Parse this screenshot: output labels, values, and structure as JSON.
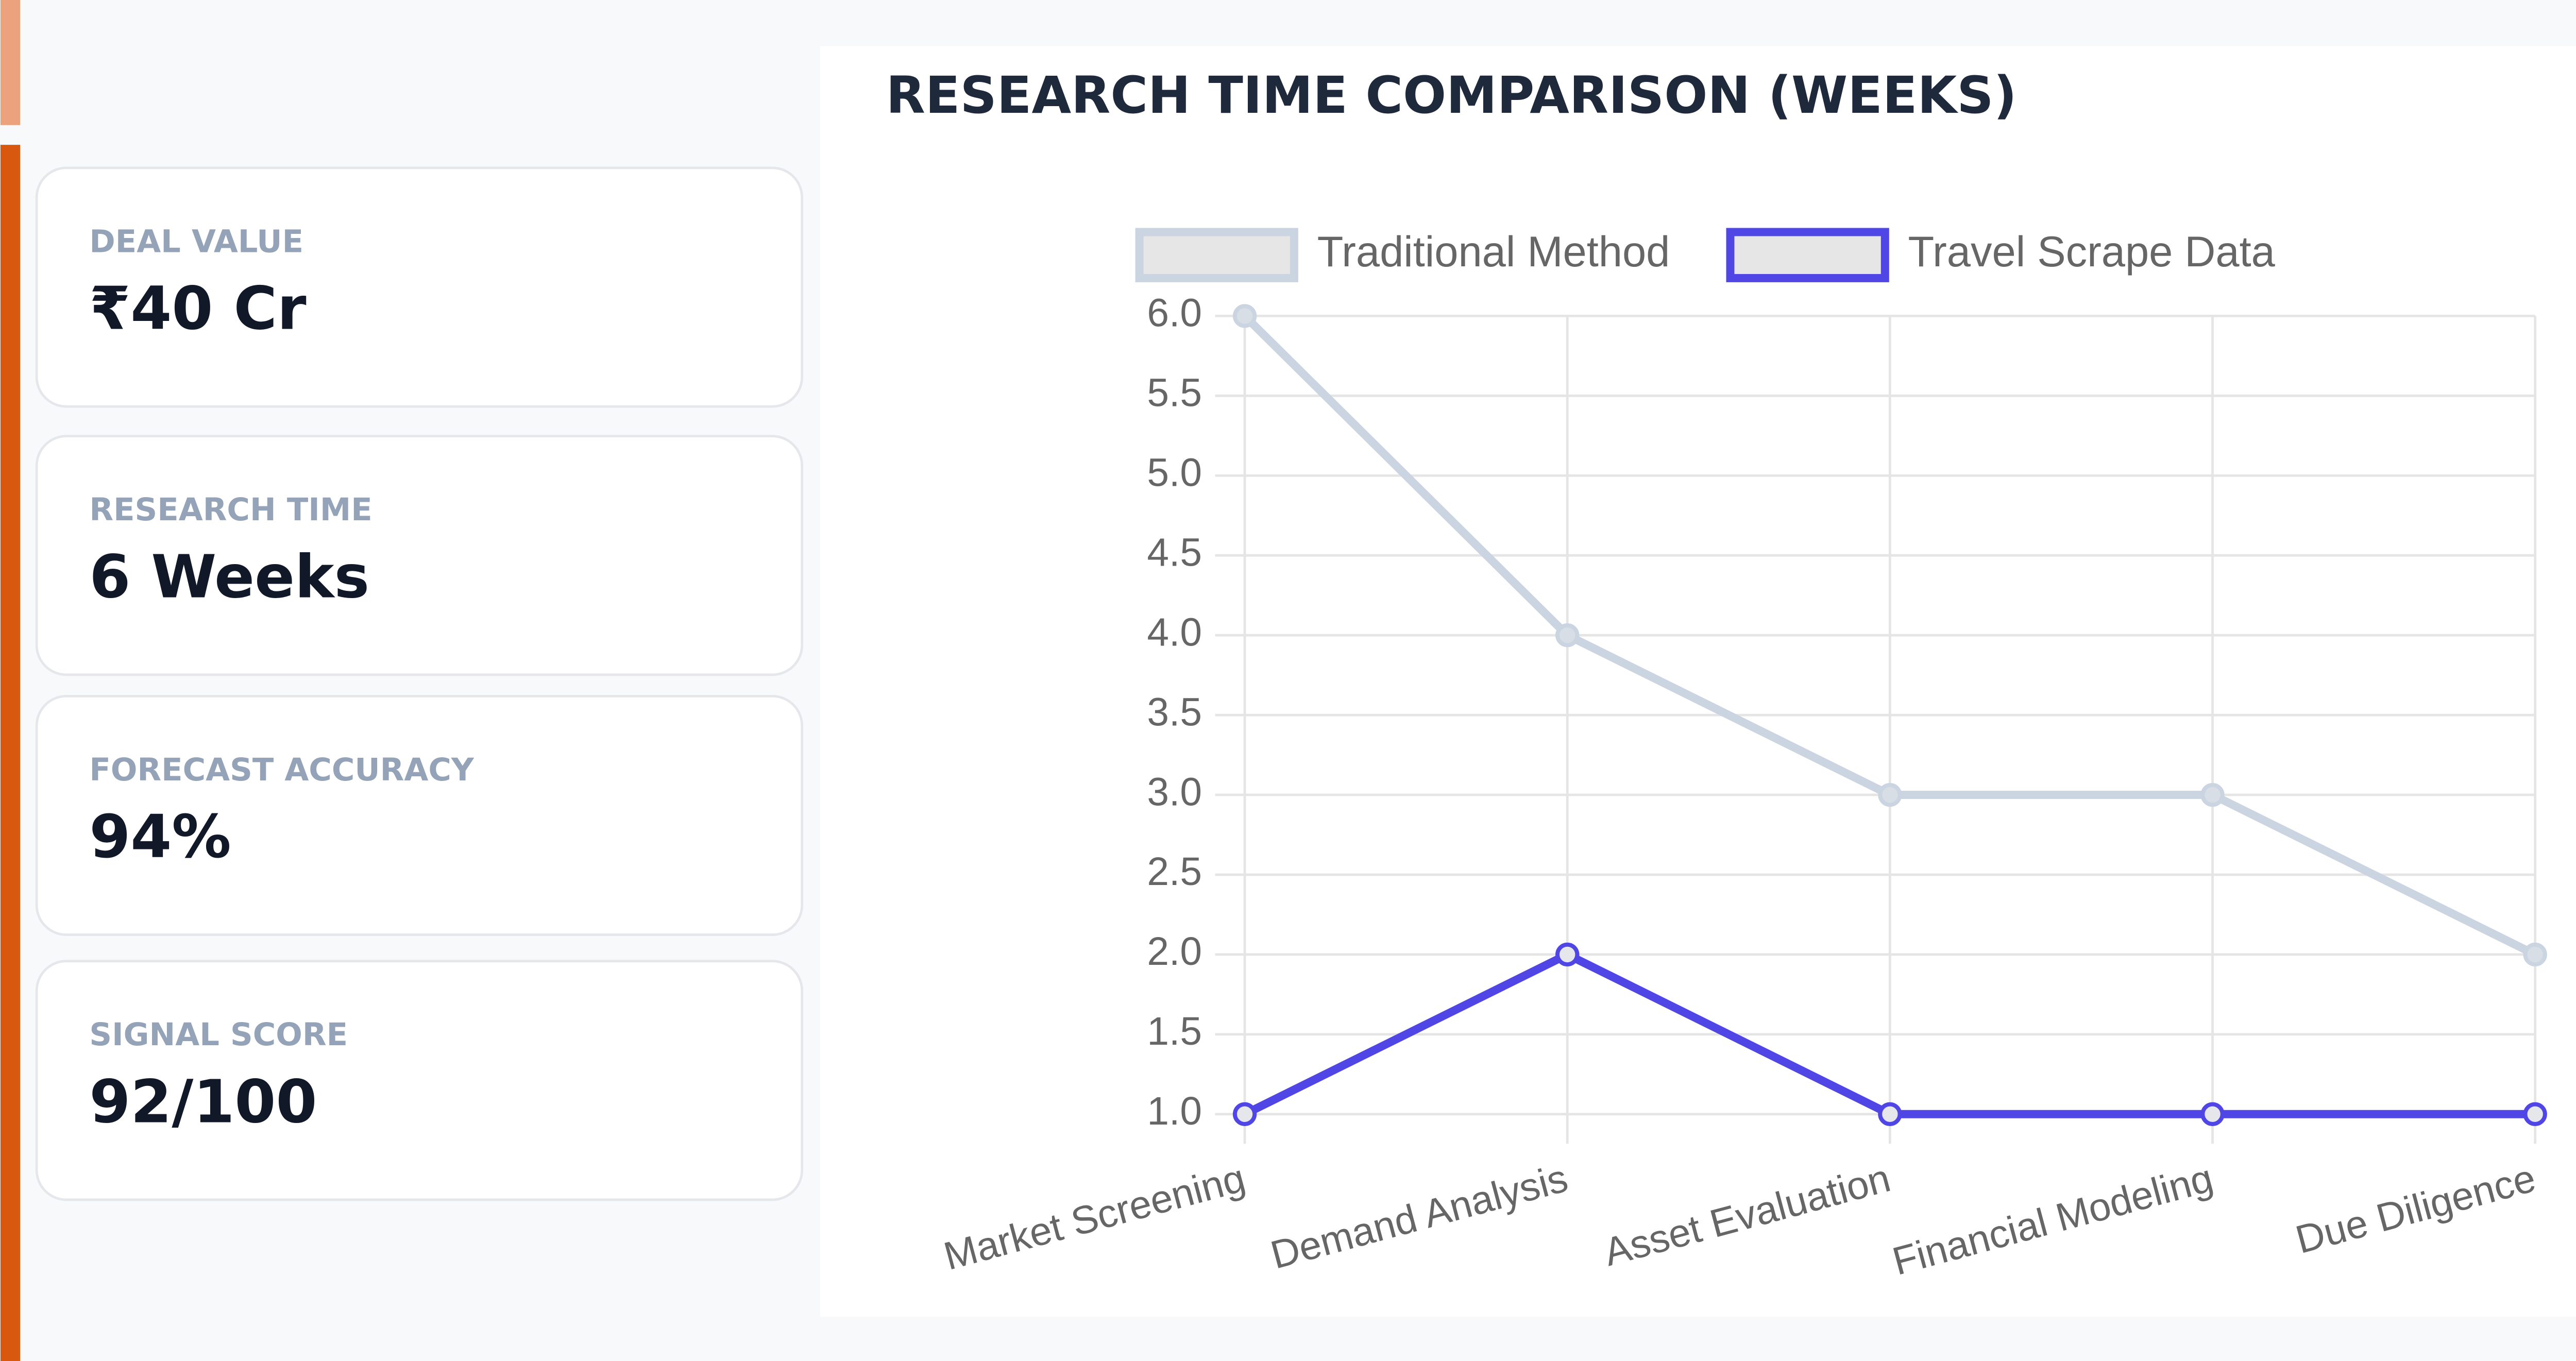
{
  "cards": [
    {
      "label": "DEAL VALUE",
      "value": "₹40 Cr"
    },
    {
      "label": "RESEARCH TIME",
      "value": "6 Weeks"
    },
    {
      "label": "FORECAST ACCURACY",
      "value": "94%"
    },
    {
      "label": "SIGNAL SCORE",
      "value": "92/100"
    }
  ],
  "chart_data": {
    "type": "line",
    "title": "RESEARCH TIME COMPARISON (WEEKS)",
    "categories": [
      "Market Screening",
      "Demand Analysis",
      "Asset Evaluation",
      "Financial Modeling",
      "Due Diligence"
    ],
    "series": [
      {
        "name": "Traditional Method",
        "color": "#cbd5e1",
        "values": [
          6,
          4,
          3,
          3,
          2
        ]
      },
      {
        "name": "Travel Scrape Data",
        "color": "#4f46e5",
        "values": [
          1,
          2,
          1,
          1,
          1
        ]
      }
    ],
    "ylim": [
      1,
      6
    ],
    "yticks": [
      {
        "value": 1,
        "label": "1.0"
      },
      1.5,
      {
        "value": 2,
        "label": "2.0"
      },
      2.5,
      {
        "value": 3,
        "label": "3.0"
      },
      3.5,
      {
        "value": 4,
        "label": "4.0"
      },
      4.5,
      {
        "value": 5,
        "label": "5.0"
      },
      5.5,
      {
        "value": 6,
        "label": "6.0"
      }
    ],
    "grid": true,
    "legend": "top"
  }
}
